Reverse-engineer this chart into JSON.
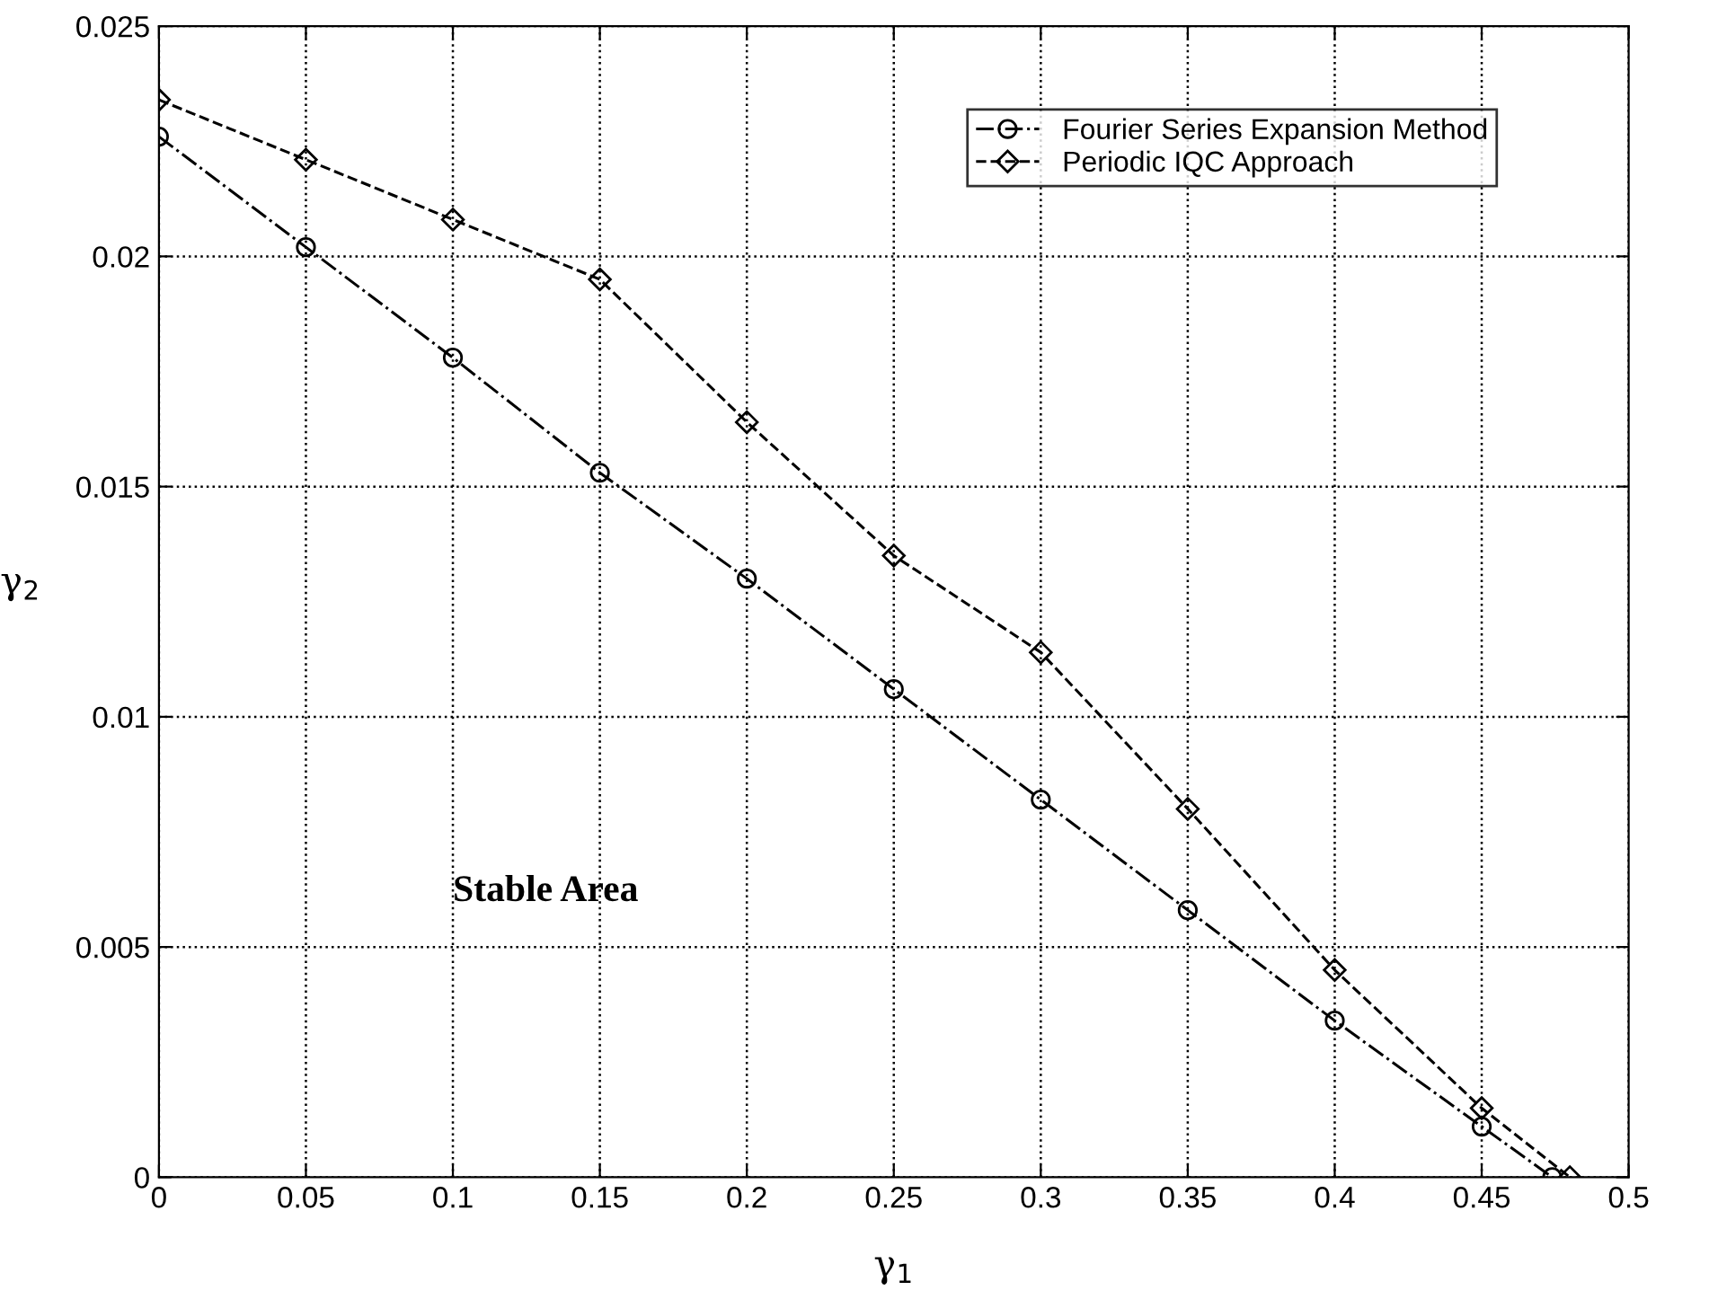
{
  "chart_data": {
    "type": "line",
    "xlabel": "γ$_{1}$",
    "ylabel": "γ$_{2}$",
    "xlim": [
      0,
      0.5
    ],
    "xticks": [
      0,
      0.05,
      0.1,
      0.15,
      0.2,
      0.25,
      0.3,
      0.35,
      0.4,
      0.45,
      0.5
    ],
    "ylim": [
      0,
      0.025
    ],
    "yticks": [
      0,
      0.005,
      0.01,
      0.015,
      0.02,
      0.025
    ],
    "grid": true,
    "legend": "top right",
    "annotations": [
      "Stable Area"
    ],
    "series": [
      {
        "name": "Fourier Series Expansion Method",
        "color": "#000000",
        "marker": "circle",
        "line_style": "dashdot",
        "x": [
          0,
          0.05,
          0.1,
          0.15,
          0.2,
          0.25,
          0.3,
          0.35,
          0.4,
          0.45,
          0.474
        ],
        "values": [
          0.0226,
          0.0202,
          0.0178,
          0.0153,
          0.013,
          0.0106,
          0.0082,
          0.0058,
          0.0034,
          0.0011,
          0
        ]
      },
      {
        "name": "Periodic IQC Approach",
        "color": "#000000",
        "marker": "diamond",
        "line_style": "dashed",
        "x": [
          0,
          0.05,
          0.1,
          0.15,
          0.2,
          0.25,
          0.3,
          0.35,
          0.4,
          0.45,
          0.48
        ],
        "values": [
          0.0234,
          0.0221,
          0.0208,
          0.0195,
          0.0164,
          0.0135,
          0.0114,
          0.008,
          0.0045,
          0.0015,
          0
        ]
      }
    ]
  }
}
